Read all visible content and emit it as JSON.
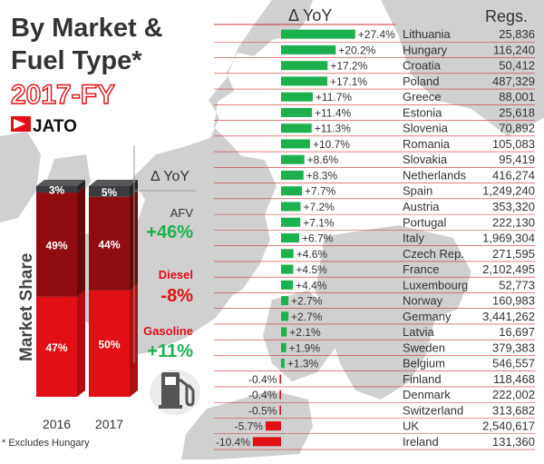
{
  "title": {
    "line1": "By Market &",
    "line2": "Fuel Type*",
    "period": "2017-FY"
  },
  "logo": {
    "brand": "JATO"
  },
  "footnote": "* Excludes Hungary",
  "colors": {
    "green": "#1db04f",
    "red": "#e01015",
    "darkRed": "#8f0d10",
    "midRed": "#c0111a",
    "charcoal": "#3a3b3d",
    "map": "#cfcfcf",
    "text": "#333333"
  },
  "share_panel": {
    "ylabel": "Market Share",
    "yoy_header": "Δ YoY",
    "fuel_yoy": [
      {
        "fuel": "AFV",
        "value": "+46%",
        "color": "#1db04f"
      },
      {
        "fuel": "Diesel",
        "value": "-8%",
        "color": "#e01015"
      },
      {
        "fuel": "Gasoline",
        "value": "+11%",
        "color": "#1db04f"
      }
    ]
  },
  "market_panel": {
    "yoy_header": "Δ YoY",
    "regs_header": "Regs."
  },
  "chart_data": [
    {
      "type": "bar",
      "stacked": true,
      "categories": [
        "2016",
        "2017"
      ],
      "ylabel": "Market Share",
      "series": [
        {
          "name": "Gasoline",
          "values": [
            47,
            50
          ],
          "labels": [
            "47%",
            "50%"
          ],
          "color": "#e01015"
        },
        {
          "name": "Diesel",
          "values": [
            49,
            44
          ],
          "labels": [
            "49%",
            "44%"
          ],
          "color": "#8f0d10"
        },
        {
          "name": "AFV",
          "values": [
            3,
            5
          ],
          "labels": [
            "3%",
            "5%"
          ],
          "color": "#3a3b3d"
        }
      ]
    },
    {
      "type": "bar",
      "orientation": "horizontal",
      "title": "Δ YoY",
      "categories": [
        "Lithuania",
        "Hungary",
        "Croatia",
        "Poland",
        "Greece",
        "Estonia",
        "Slovenia",
        "Romania",
        "Slovakia",
        "Netherlands",
        "Spain",
        "Austria",
        "Portugal",
        "Italy",
        "Czech Rep.",
        "France",
        "Luxembourg",
        "Norway",
        "Germany",
        "Latvia",
        "Sweden",
        "Belgium",
        "Finland",
        "Denmark",
        "Switzerland",
        "UK",
        "Ireland"
      ],
      "values": [
        27.4,
        20.2,
        17.2,
        17.1,
        11.7,
        11.4,
        11.3,
        10.7,
        8.6,
        8.3,
        7.7,
        7.2,
        7.1,
        6.7,
        4.6,
        4.5,
        4.4,
        2.7,
        2.7,
        2.1,
        1.9,
        1.3,
        -0.4,
        -0.4,
        -0.5,
        -5.7,
        -10.4
      ],
      "labels": [
        "+27.4%",
        "+20.2%",
        "+17.2%",
        "+17.1%",
        "+11.7%",
        "+11.4%",
        "+11.3%",
        "+10.7%",
        "+8.6%",
        "+8.3%",
        "+7.7%",
        "+7.2%",
        "+7.1%",
        "+6.7%",
        "+4.6%",
        "+4.5%",
        "+4.4%",
        "+2.7%",
        "+2.7%",
        "+2.1%",
        "+1.9%",
        "+1.3%",
        "-0.4%",
        "-0.4%",
        "-0.5%",
        "-5.7%",
        "-10.4%"
      ],
      "regs": [
        "25,836",
        "116,240",
        "50,412",
        "487,329",
        "88,001",
        "25,618",
        "70,892",
        "105,083",
        "95,419",
        "416,274",
        "1,249,240",
        "353,320",
        "222,130",
        "1,969,304",
        "271,595",
        "2,102,495",
        "52,773",
        "160,983",
        "3,441,262",
        "16,697",
        "379,383",
        "546,557",
        "118,468",
        "222,002",
        "313,682",
        "2,540,617",
        "131,360"
      ],
      "positive_color": "#1db04f",
      "negative_color": "#e01015"
    }
  ]
}
